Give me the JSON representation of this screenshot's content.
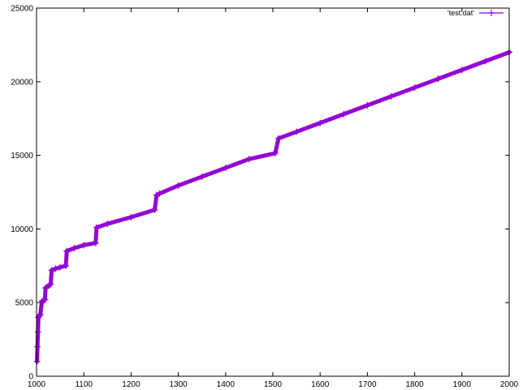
{
  "chart_data": {
    "type": "line",
    "title": "",
    "xlabel": "",
    "ylabel": "",
    "xlim": [
      1000,
      2000
    ],
    "ylim": [
      0,
      25000
    ],
    "xticks": [
      "1000",
      "1100",
      "1200",
      "1300",
      "1400",
      "1500",
      "1600",
      "1700",
      "1800",
      "1900",
      "2000"
    ],
    "yticks": [
      "0",
      "5000",
      "10000",
      "15000",
      "20000",
      "25000"
    ],
    "grid": false,
    "legend_position": "top-right",
    "series": [
      {
        "name": "'test.dat'",
        "color": "#9400d3",
        "marker": "plus",
        "x": [
          1001,
          1002,
          1003,
          1004,
          1006,
          1008,
          1011,
          1012,
          1015,
          1018,
          1019,
          1022,
          1026,
          1030,
          1032,
          1040,
          1050,
          1062,
          1064,
          1080,
          1100,
          1125,
          1127,
          1150,
          1200,
          1250,
          1254,
          1260,
          1300,
          1350,
          1400,
          1450,
          1505,
          1512,
          1550,
          1600,
          1650,
          1700,
          1750,
          1800,
          1850,
          1900,
          1950,
          2000
        ],
        "y": [
          1000,
          2000,
          3000,
          4000,
          4100,
          4200,
          5000,
          5100,
          5150,
          5200,
          6000,
          6050,
          6150,
          6250,
          7200,
          7300,
          7400,
          7500,
          8500,
          8700,
          8900,
          9050,
          10100,
          10350,
          10800,
          11300,
          12300,
          12400,
          12950,
          13550,
          14150,
          14750,
          15150,
          16150,
          16600,
          17200,
          17800,
          18400,
          19000,
          19600,
          20200,
          20800,
          21400,
          22000
        ]
      }
    ]
  }
}
